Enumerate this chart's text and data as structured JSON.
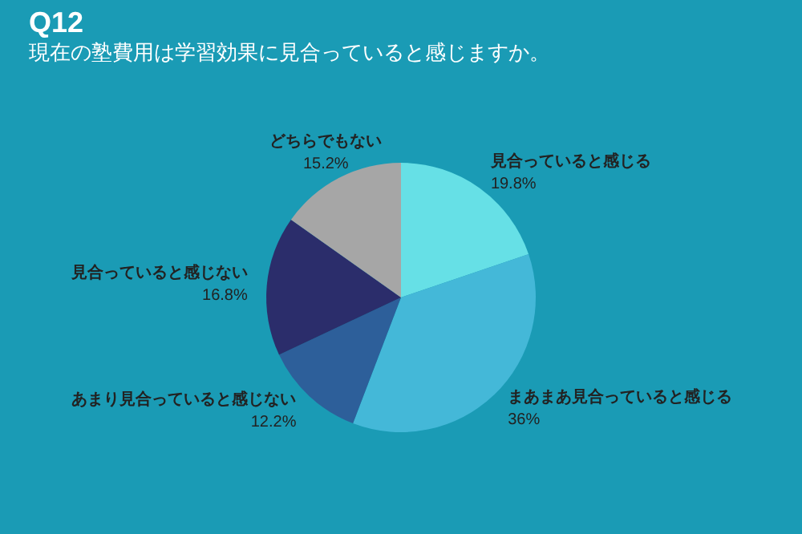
{
  "chart_data": {
    "type": "pie",
    "title": "Q12",
    "subtitle": "現在の塾費用は学習効果に見合っていると感じますか。",
    "categories": [
      "見合っていると感じる",
      "まあまあ見合っていると感じる",
      "あまり見合っていると感じない",
      "見合っていると感じない",
      "どちらでもない"
    ],
    "values": [
      19.8,
      36,
      12.2,
      16.8,
      15.2
    ],
    "value_labels": [
      "19.8%",
      "36%",
      "12.2%",
      "16.8%",
      "15.2%"
    ],
    "colors": [
      "#66e0e6",
      "#44b8d8",
      "#2d5f9a",
      "#2b2d6b",
      "#a6a6a6"
    ],
    "legend": false
  }
}
